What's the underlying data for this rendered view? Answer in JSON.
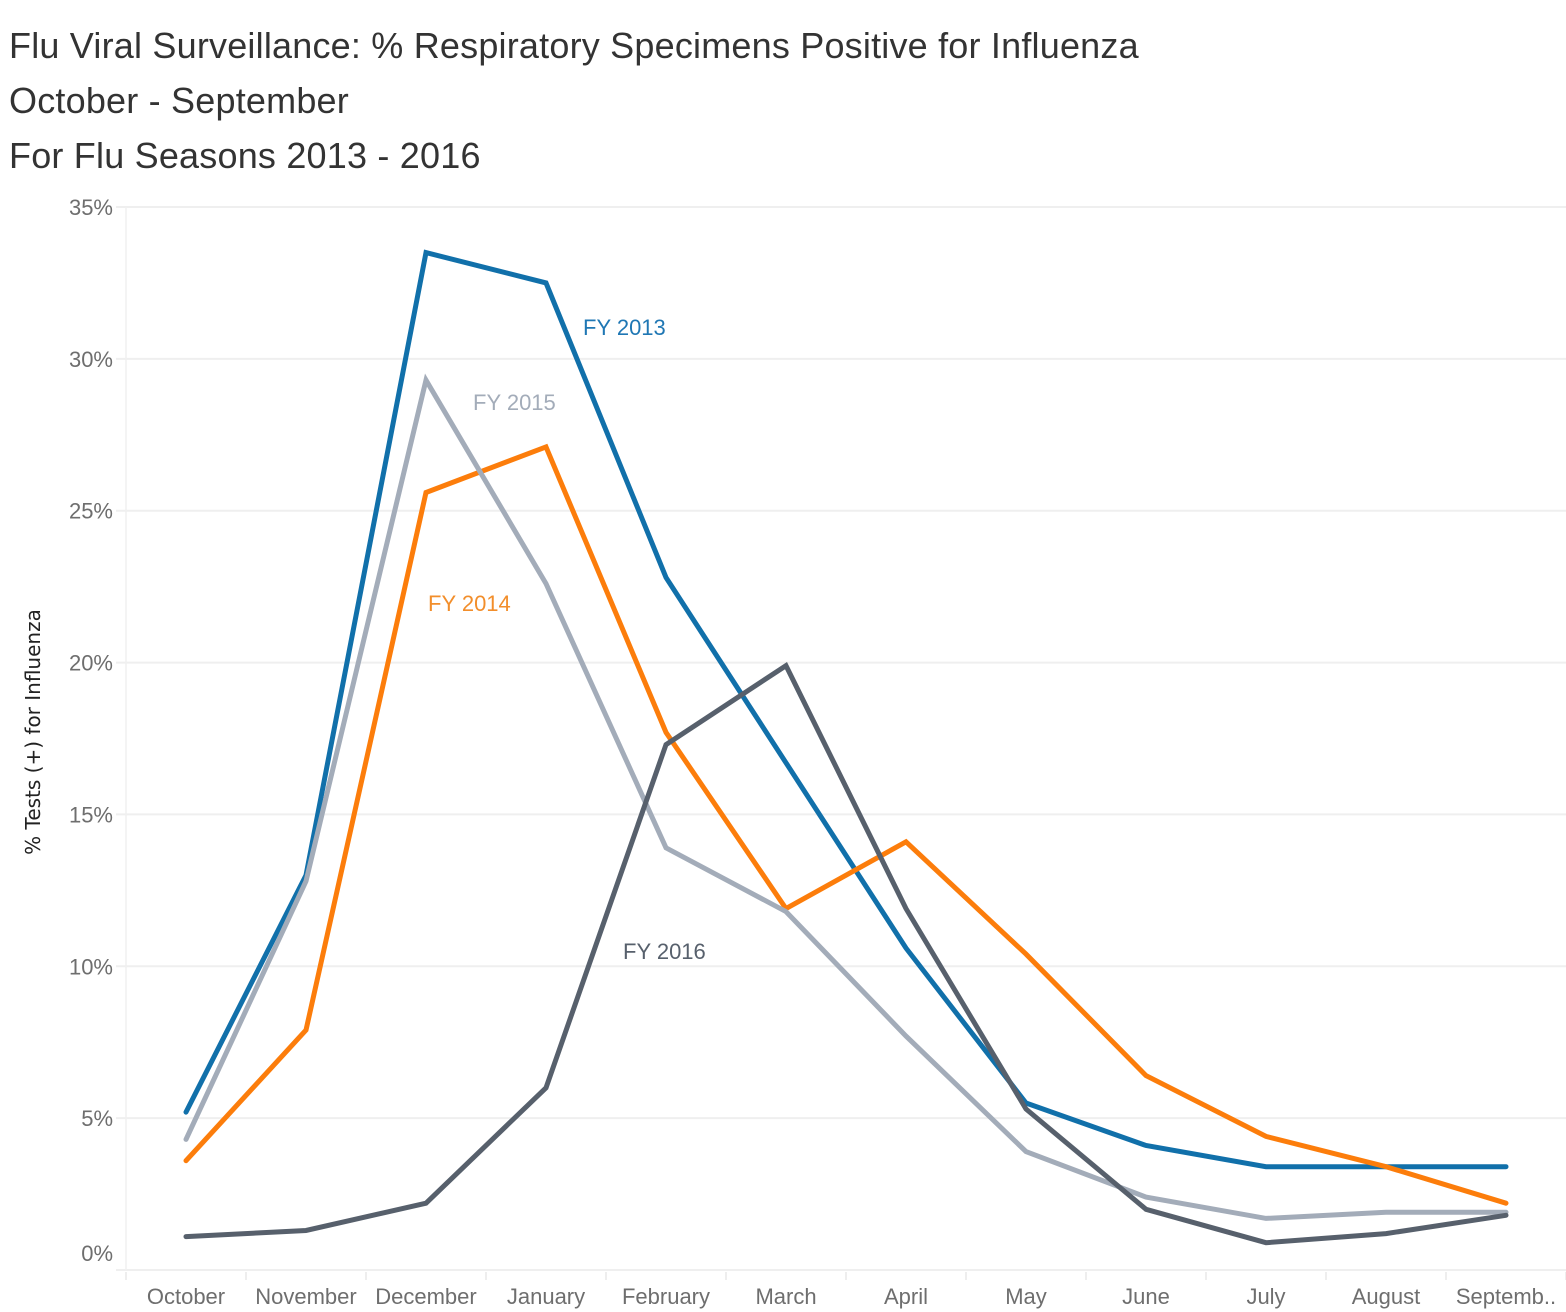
{
  "header": {
    "title_lines": [
      "Flu Viral Surveillance: % Respiratory Specimens Positive for Influenza",
      "October - September",
      "For Flu Seasons 2013 - 2016"
    ]
  },
  "chart_data": {
    "type": "line",
    "title": "Flu Viral Surveillance: % Respiratory Specimens Positive for Influenza",
    "subtitle": "October - September; For Flu Seasons 2013 - 2016",
    "xlabel": "",
    "ylabel": "% Tests (+) for Influenza",
    "categories": [
      "October",
      "November",
      "December",
      "January",
      "February",
      "March",
      "April",
      "May",
      "June",
      "July",
      "August",
      "Septemb.."
    ],
    "ylim": [
      0,
      35
    ],
    "yticks": [
      0,
      5,
      10,
      15,
      20,
      25,
      30,
      35
    ],
    "ytick_labels": [
      "0%",
      "5%",
      "10%",
      "15%",
      "20%",
      "25%",
      "30%",
      "35%"
    ],
    "grid": true,
    "legend": "inline labels",
    "series": [
      {
        "name": "FY 2013",
        "color": "#1170aa",
        "label_color": "#1f77b4",
        "values": [
          5.2,
          13.0,
          33.5,
          32.5,
          22.8,
          16.7,
          10.6,
          5.5,
          4.1,
          3.4,
          3.4,
          3.4
        ]
      },
      {
        "name": "FY 2014",
        "color": "#fc7d0b",
        "label_color": "#f28e2b",
        "values": [
          3.6,
          7.9,
          25.6,
          27.1,
          17.7,
          11.9,
          14.1,
          10.4,
          6.4,
          4.4,
          3.4,
          2.2
        ]
      },
      {
        "name": "FY 2015",
        "color": "#a3acb9",
        "label_color": "#a3acb9",
        "values": [
          4.3,
          12.8,
          29.3,
          22.6,
          13.9,
          11.8,
          7.7,
          3.9,
          2.4,
          1.7,
          1.9,
          1.9
        ]
      },
      {
        "name": "FY 2016",
        "color": "#57606c",
        "label_color": "#57606c",
        "values": [
          1.1,
          1.3,
          2.2,
          6.0,
          17.3,
          19.9,
          11.9,
          5.3,
          2.0,
          0.9,
          1.2,
          1.8
        ]
      }
    ],
    "annotations": [
      {
        "series": "FY 2013",
        "text": "FY 2013",
        "near_category": "January",
        "near_value": 31.0
      },
      {
        "series": "FY 2015",
        "text": "FY 2015",
        "near_category": "December",
        "near_value": 28.7
      },
      {
        "series": "FY 2014",
        "text": "FY 2014",
        "near_category": "December",
        "near_value": 22.0
      },
      {
        "series": "FY 2016",
        "text": "FY 2016",
        "near_category": "February",
        "near_value": 10.4
      }
    ]
  }
}
